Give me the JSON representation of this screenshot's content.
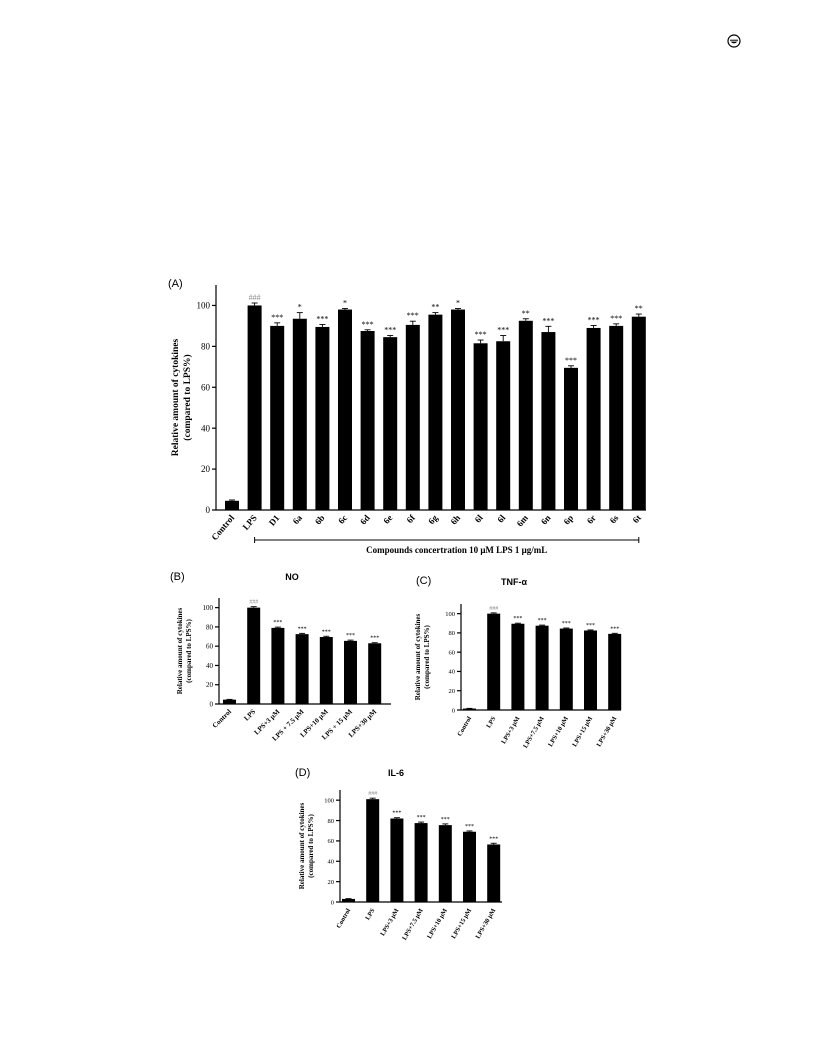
{
  "header": {
    "icon": "open-access-icon"
  },
  "colors": {
    "bar": "#000000",
    "axis": "#000000",
    "significance_hash": "#888888"
  },
  "chart_data": [
    {
      "id": "A",
      "panel_label": "(A)",
      "type": "bar",
      "title": "",
      "ylabel_line1": "Relative amount of cytokines",
      "ylabel_line2": "(compared to LPS%)",
      "ylim": [
        0,
        110
      ],
      "yticks": [
        0,
        20,
        40,
        60,
        80,
        100
      ],
      "categories": [
        "Control",
        "LPS",
        "D1",
        "6a",
        "6b",
        "6c",
        "6d",
        "6e",
        "6f",
        "6g",
        "6h",
        "6l",
        "6l",
        "6m",
        "6n",
        "6p",
        "6r",
        "6s",
        "6t"
      ],
      "values": [
        4.5,
        100,
        90,
        93.5,
        89.5,
        98,
        87.5,
        84.5,
        90.5,
        95.5,
        98,
        81.5,
        82.5,
        92.5,
        87,
        69.5,
        89,
        90,
        94.5
      ],
      "errors": [
        0.4,
        1.2,
        1.5,
        3,
        1.2,
        0.5,
        0.6,
        0.8,
        1.8,
        1,
        0.5,
        1.6,
        2.8,
        1,
        2.8,
        1,
        1.2,
        1,
        1.3
      ],
      "significance": [
        "",
        "###",
        "***",
        "*",
        "***",
        "*",
        "***",
        "***",
        "***",
        "**",
        "*",
        "***",
        "***",
        "**",
        "***",
        "***",
        "***",
        "***",
        "**"
      ],
      "bracket_label": "Compounds concertration 10 μM    LPS 1 μg/mL"
    },
    {
      "id": "B",
      "panel_label": "(B)",
      "type": "bar",
      "title": "NO",
      "ylabel_line1": "Relative amount of cytokines",
      "ylabel_line2": "(compared to LPS%)",
      "ylim": [
        0,
        110
      ],
      "yticks": [
        0,
        20,
        40,
        60,
        80,
        100
      ],
      "categories": [
        "Control",
        "LPS",
        "LPS+3 μM",
        "LPS + 7.5 μM",
        "LPS+10 μM",
        "LPS + 15 μM",
        "LPS+30 μM"
      ],
      "values": [
        4.5,
        100,
        79,
        72.5,
        69.5,
        65.5,
        63
      ],
      "errors": [
        0.3,
        1,
        0.8,
        0.8,
        0.8,
        0.8,
        0.6
      ],
      "significance": [
        "",
        "###",
        "***",
        "***",
        "***",
        "***",
        "***"
      ]
    },
    {
      "id": "C",
      "panel_label": "(C)",
      "type": "bar",
      "title": "TNF-α",
      "ylabel_line1": "Relative amount of cytokines",
      "ylabel_line2": "(compared to LPS%)",
      "ylim": [
        0,
        110
      ],
      "yticks": [
        0,
        20,
        40,
        60,
        80,
        100
      ],
      "categories": [
        "Control",
        "LPS",
        "LPS+3 μM",
        "LPS+7.5 μM",
        "LPS+10 μM",
        "LPS+15 μM",
        "LPS+30 μM"
      ],
      "values": [
        1.5,
        100,
        89.5,
        87.5,
        84.5,
        82.5,
        79
      ],
      "errors": [
        0.2,
        0.8,
        0.6,
        0.6,
        0.6,
        0.6,
        0.6
      ],
      "significance": [
        "",
        "###",
        "***",
        "***",
        "***",
        "***",
        "***"
      ]
    },
    {
      "id": "D",
      "panel_label": "(D)",
      "type": "bar",
      "title": "IL-6",
      "ylabel_line1": "Relative amount of cytokines",
      "ylabel_line2": "(compared to LPS%)",
      "ylim": [
        0,
        110
      ],
      "yticks": [
        0,
        20,
        40,
        60,
        80,
        100
      ],
      "categories": [
        "Control",
        "LPS",
        "LPS+3 μM",
        "LPS+7.5 μM",
        "LPS+10 μM",
        "LPS+15 μM",
        "LPS+30 μM"
      ],
      "values": [
        3,
        101,
        82,
        77.5,
        75.5,
        69,
        56.5
      ],
      "errors": [
        0.3,
        1,
        0.8,
        1,
        1.2,
        0.8,
        1.2
      ],
      "significance": [
        "",
        "###",
        "***",
        "***",
        "***",
        "***",
        "***"
      ]
    }
  ]
}
